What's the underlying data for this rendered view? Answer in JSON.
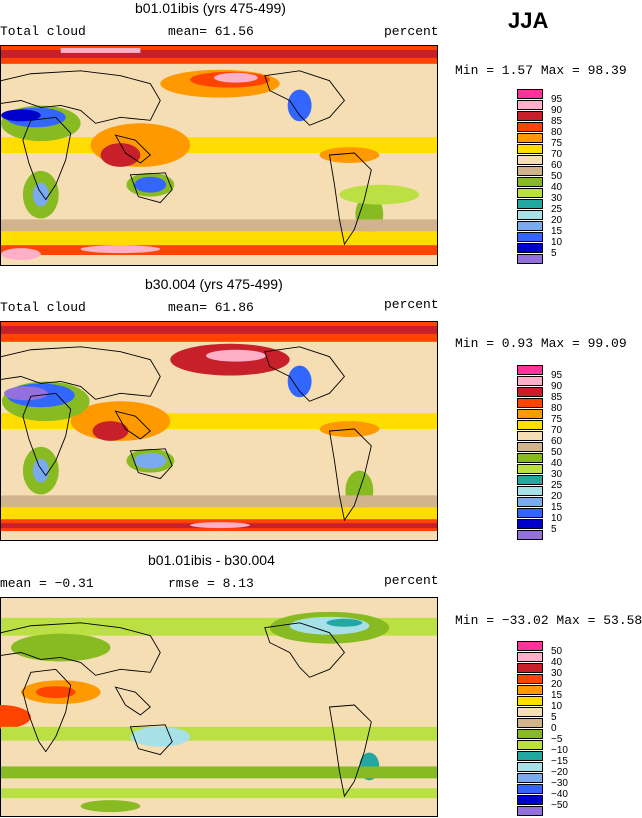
{
  "season": "JJA",
  "panels": [
    {
      "title": "b01.01ibis (yrs 475-499)",
      "left_label": "Total cloud",
      "mid_label": "mean=  61.56",
      "right_label": "percent",
      "minmax": "Min =   1.57 Max =  98.39",
      "palette": "abs",
      "legend_levels": [
        "95",
        "90",
        "85",
        "80",
        "75",
        "70",
        "60",
        "50",
        "40",
        "30",
        "25",
        "20",
        "15",
        "10",
        "5"
      ]
    },
    {
      "title": "b30.004 (yrs 475-499)",
      "left_label": "Total cloud",
      "mid_label": "mean=  61.86",
      "right_label": "percent",
      "minmax": "Min =   0.93 Max =  99.09",
      "palette": "abs",
      "legend_levels": [
        "95",
        "90",
        "85",
        "80",
        "75",
        "70",
        "60",
        "50",
        "40",
        "30",
        "25",
        "20",
        "15",
        "10",
        "5"
      ]
    },
    {
      "title": "b01.01ibis - b30.004",
      "left_label": "mean =  −0.31",
      "mid_label": "rmse =   8.13",
      "right_label": "percent",
      "minmax": "Min = −33.02 Max =  53.58",
      "palette": "diff",
      "legend_levels": [
        "50",
        "40",
        "30",
        "20",
        "15",
        "10",
        "5",
        "0",
        "−5",
        "−10",
        "−15",
        "−20",
        "−30",
        "−40",
        "−50"
      ]
    }
  ],
  "colors": {
    "abs": [
      "#ff3399",
      "#ffb0c8",
      "#c8202a",
      "#ff4400",
      "#ff9900",
      "#ffdd00",
      "#f5deb3",
      "#d2b48c",
      "#88bb22",
      "#bbe044",
      "#22a8a0",
      "#a8e0e8",
      "#7aaaf0",
      "#3366ff",
      "#0000cc",
      "#9370db"
    ],
    "diff": [
      "#ff3399",
      "#ffb0c8",
      "#c8202a",
      "#ff4400",
      "#ff9900",
      "#ffdd00",
      "#f5deb3",
      "#d2b48c",
      "#88bb22",
      "#bbe044",
      "#22a8a0",
      "#a8e0e8",
      "#7aaaf0",
      "#3366ff",
      "#0000cc",
      "#9370db"
    ]
  }
}
